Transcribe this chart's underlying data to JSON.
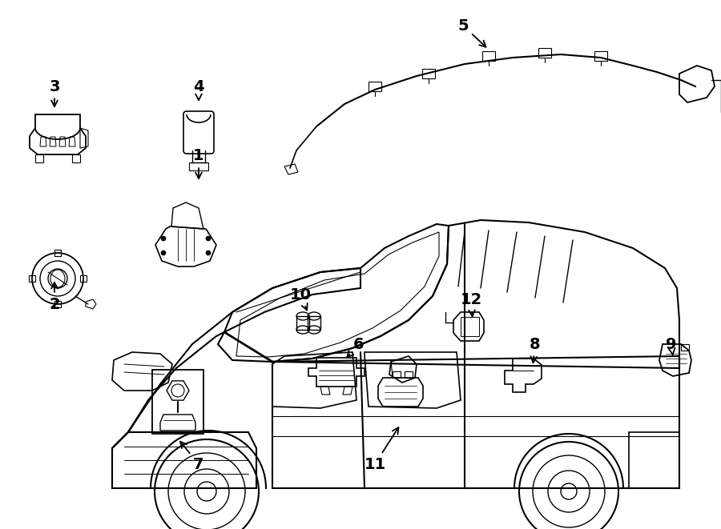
{
  "bg_color": "#ffffff",
  "line_color": "#000000",
  "annotations": [
    [
      "1",
      248,
      195,
      248,
      228
    ],
    [
      "2",
      68,
      380,
      68,
      348
    ],
    [
      "3",
      68,
      108,
      68,
      138
    ],
    [
      "4",
      248,
      108,
      248,
      130
    ],
    [
      "5",
      578,
      32,
      610,
      62
    ],
    [
      "6",
      448,
      430,
      430,
      450
    ],
    [
      "7",
      248,
      580,
      222,
      548
    ],
    [
      "8",
      668,
      430,
      665,
      458
    ],
    [
      "9",
      838,
      430,
      840,
      445
    ],
    [
      "10",
      375,
      368,
      385,
      392
    ],
    [
      "11",
      468,
      580,
      500,
      530
    ],
    [
      "12",
      588,
      375,
      590,
      400
    ]
  ]
}
